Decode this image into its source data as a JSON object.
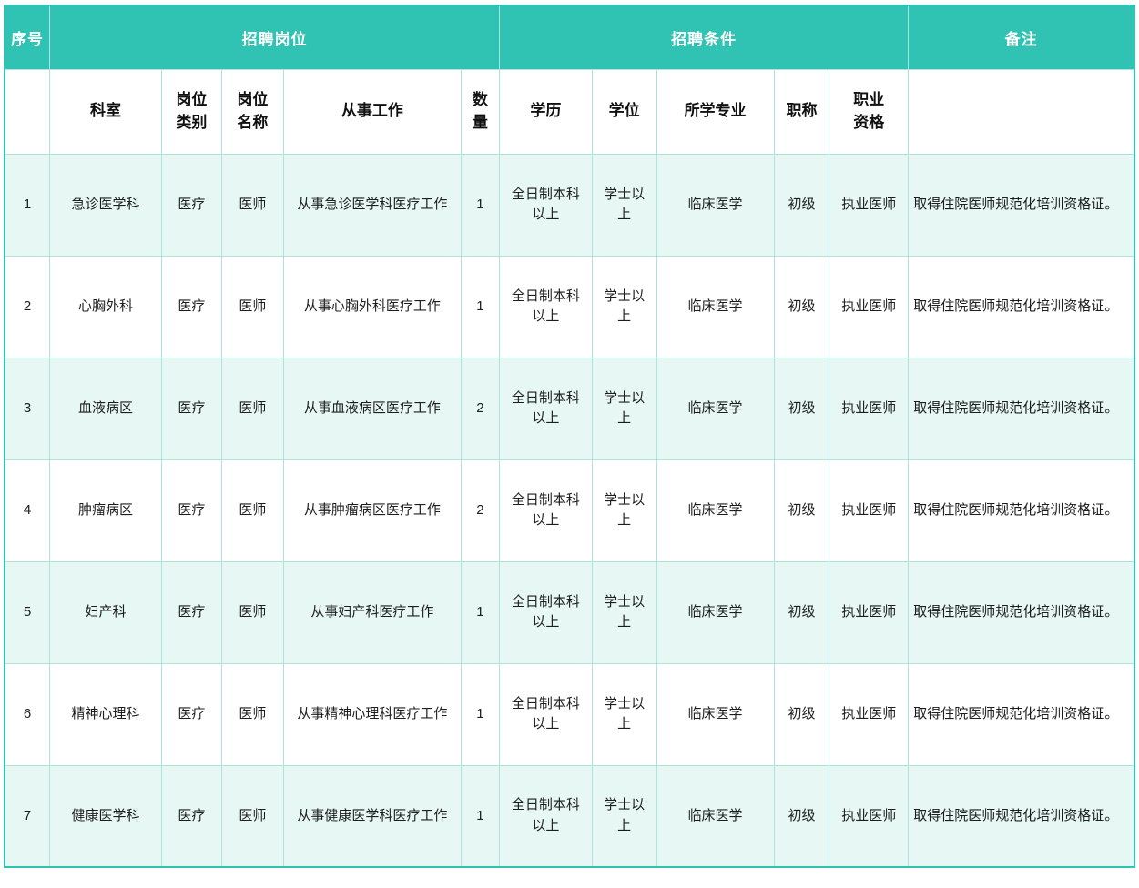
{
  "theme": {
    "header_bg": "#30c3b3",
    "header_text": "#ffffff",
    "row_alt_bg": "#e7f7f4",
    "row_bg": "#ffffff",
    "grid_line": "#ace4dd",
    "body_text": "#1d1d1d",
    "outer_border": "#30c3b3"
  },
  "table": {
    "group_headers": [
      {
        "key": "serial",
        "label": "序号",
        "colspan": 1
      },
      {
        "key": "recruit-post",
        "label": "招聘岗位",
        "colspan": 5
      },
      {
        "key": "recruit-conditions",
        "label": "招聘条件",
        "colspan": 5
      },
      {
        "key": "remark",
        "label": "备注",
        "colspan": 1
      }
    ],
    "column_headers": [
      "",
      "科室",
      "岗位类别",
      "岗位名称",
      "从事工作",
      "数量",
      "学历",
      "学位",
      "所学专业",
      "职称",
      "职业资格",
      ""
    ],
    "rows": [
      [
        "1",
        "急诊医学科",
        "医疗",
        "医师",
        "从事急诊医学科医疗工作",
        "1",
        "全日制本科以上",
        "学士以上",
        "临床医学",
        "初级",
        "执业医师",
        "取得住院医师规范化培训资格证。"
      ],
      [
        "2",
        "心胸外科",
        "医疗",
        "医师",
        "从事心胸外科医疗工作",
        "1",
        "全日制本科以上",
        "学士以上",
        "临床医学",
        "初级",
        "执业医师",
        "取得住院医师规范化培训资格证。"
      ],
      [
        "3",
        "血液病区",
        "医疗",
        "医师",
        "从事血液病区医疗工作",
        "2",
        "全日制本科以上",
        "学士以上",
        "临床医学",
        "初级",
        "执业医师",
        "取得住院医师规范化培训资格证。"
      ],
      [
        "4",
        "肿瘤病区",
        "医疗",
        "医师",
        "从事肿瘤病区医疗工作",
        "2",
        "全日制本科以上",
        "学士以上",
        "临床医学",
        "初级",
        "执业医师",
        "取得住院医师规范化培训资格证。"
      ],
      [
        "5",
        "妇产科",
        "医疗",
        "医师",
        "从事妇产科医疗工作",
        "1",
        "全日制本科以上",
        "学士以上",
        "临床医学",
        "初级",
        "执业医师",
        "取得住院医师规范化培训资格证。"
      ],
      [
        "6",
        "精神心理科",
        "医疗",
        "医师",
        "从事精神心理科医疗工作",
        "1",
        "全日制本科以上",
        "学士以上",
        "临床医学",
        "初级",
        "执业医师",
        "取得住院医师规范化培训资格证。"
      ],
      [
        "7",
        "健康医学科",
        "医疗",
        "医师",
        "从事健康医学科医疗工作",
        "1",
        "全日制本科以上",
        "学士以上",
        "临床医学",
        "初级",
        "执业医师",
        "取得住院医师规范化培训资格证。"
      ]
    ]
  }
}
